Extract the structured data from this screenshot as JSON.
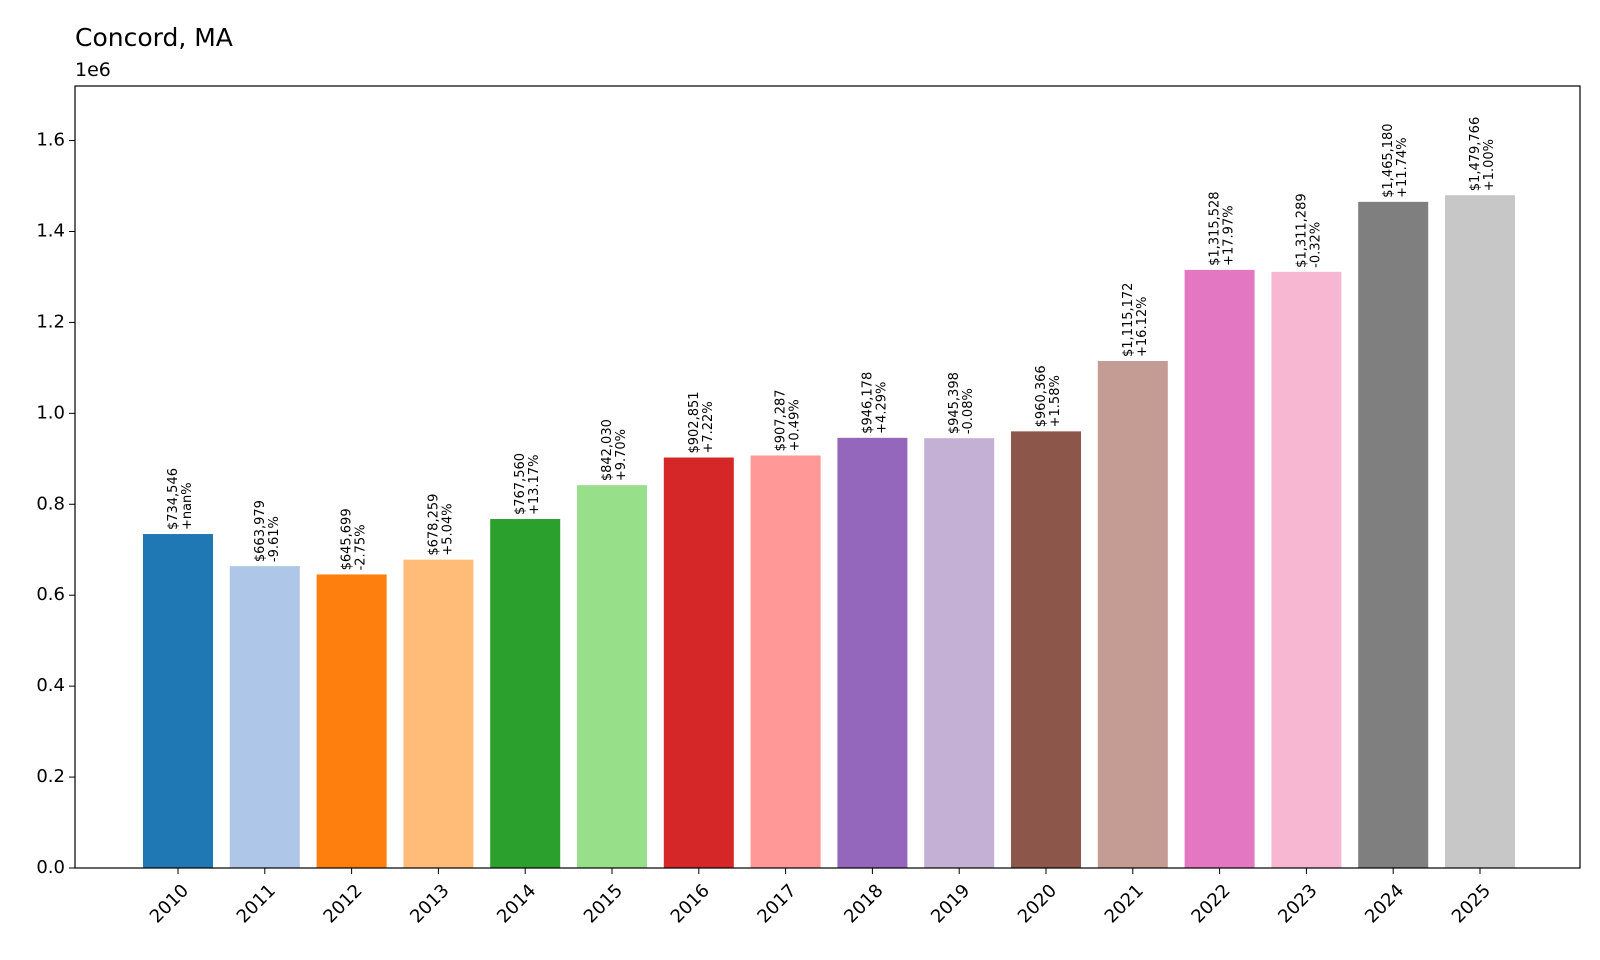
{
  "chart_data": {
    "type": "bar",
    "title": "Concord, MA",
    "y_offset_label": "1e6",
    "xlabel": "",
    "ylabel": "",
    "ylim": [
      0,
      1720000
    ],
    "ytick_values": [
      0,
      200000,
      400000,
      600000,
      800000,
      1000000,
      1200000,
      1400000,
      1600000
    ],
    "ytick_labels": [
      "0.0",
      "0.2",
      "0.4",
      "0.6",
      "0.8",
      "1.0",
      "1.2",
      "1.4",
      "1.6"
    ],
    "grid": false,
    "legend": "none",
    "categories": [
      "2010",
      "2011",
      "2012",
      "2013",
      "2014",
      "2015",
      "2016",
      "2017",
      "2018",
      "2019",
      "2020",
      "2021",
      "2022",
      "2023",
      "2024",
      "2025"
    ],
    "values": [
      734546,
      663979,
      645699,
      678259,
      767560,
      842030,
      902851,
      907287,
      946178,
      945398,
      960366,
      1115172,
      1315528,
      1311289,
      1465180,
      1479766
    ],
    "value_labels": [
      "$734,546",
      "$663,979",
      "$645,699",
      "$678,259",
      "$767,560",
      "$842,030",
      "$902,851",
      "$907,287",
      "$946,178",
      "$945,398",
      "$960,366",
      "$1,115,172",
      "$1,315,528",
      "$1,311,289",
      "$1,465,180",
      "$1,479,766"
    ],
    "change_labels": [
      "+nan%",
      "-9.61%",
      "-2.75%",
      "+5.04%",
      "+13.17%",
      "+9.70%",
      "+7.22%",
      "+0.49%",
      "+4.29%",
      "-0.08%",
      "+1.58%",
      "+16.12%",
      "+17.97%",
      "-0.32%",
      "+11.74%",
      "+1.00%"
    ],
    "colors": [
      "#1f77b4",
      "#aec7e8",
      "#ff7f0e",
      "#ffbb78",
      "#2ca02c",
      "#98df8a",
      "#d62728",
      "#ff9896",
      "#9467bd",
      "#c5b0d5",
      "#8c564b",
      "#c49c94",
      "#e377c2",
      "#f7b6d2",
      "#7f7f7f",
      "#c7c7c7"
    ]
  }
}
